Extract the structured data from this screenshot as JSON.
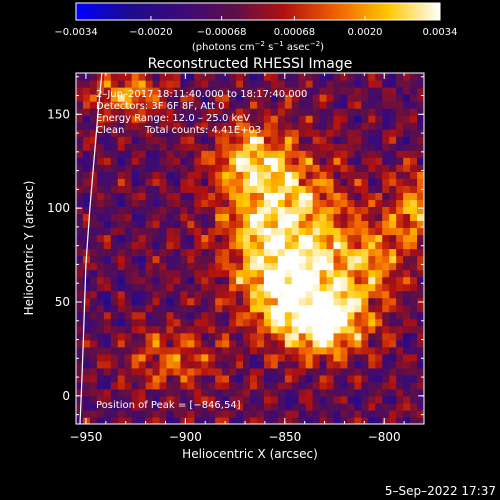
{
  "chart_data": {
    "type": "heatmap",
    "title": "Reconstructed RHESSI Image",
    "xlabel": "Heliocentric X (arcsec)",
    "ylabel": "Heliocentric Y (arcsec)",
    "xlim": [
      -955,
      -780
    ],
    "ylim": [
      -15,
      172
    ],
    "xticks": [
      -950,
      -900,
      -850,
      -800
    ],
    "xtick_labels": [
      "−950",
      "−900",
      "−850",
      "−800"
    ],
    "yticks": [
      0,
      50,
      100,
      150
    ],
    "ytick_labels": [
      "0",
      "50",
      "100",
      "150"
    ],
    "colorbar": {
      "min": -0.0034,
      "max": 0.0034,
      "ticks": [
        -0.0034,
        -0.002,
        -0.00068,
        0.00068,
        0.002,
        0.0034
      ],
      "tick_labels": [
        "−0.0034",
        "−0.0020",
        "−0.00068",
        "0.00068",
        "0.0020",
        "0.0034"
      ],
      "units_prefix": "(photons cm",
      "units_exp1": "−2",
      "units_mid": " s",
      "units_exp2": "−1",
      "units_mid2": " asec",
      "units_exp3": "−2",
      "units_suffix": ")",
      "colormap": [
        "#0000ff",
        "#1c0a90",
        "#3a0a7a",
        "#5a0f4a",
        "#b01010",
        "#f06000",
        "#ffc800",
        "#ffffff"
      ]
    },
    "annotations": {
      "time": "2–Jun–2017 18:11:40.000 to 18:17:40.000",
      "detectors": "Detectors: 3F 6F 8F, Att 0",
      "energy": "Energy Range: 12.0 – 25.0 keV",
      "clean": "Clean",
      "counts": "Total counts: 4.41E+03",
      "peak": "Position of Peak = [−846,54]"
    },
    "peak": [
      -846,
      54
    ],
    "limb_curve": [
      [
        -942,
        172
      ],
      [
        -944,
        150
      ],
      [
        -946,
        125
      ],
      [
        -948,
        100
      ],
      [
        -950,
        70
      ],
      [
        -951,
        40
      ],
      [
        -952,
        10
      ],
      [
        -953,
        -15
      ]
    ],
    "sources": [
      {
        "x": -852,
        "y": 95,
        "sx": 22,
        "sy": 28,
        "amp": 0.0034
      },
      {
        "x": -846,
        "y": 54,
        "sx": 16,
        "sy": 18,
        "amp": 0.0034
      },
      {
        "x": -826,
        "y": 38,
        "sx": 14,
        "sy": 12,
        "amp": 0.0032
      },
      {
        "x": -808,
        "y": 72,
        "sx": 14,
        "sy": 16,
        "amp": 0.0022
      },
      {
        "x": -785,
        "y": 100,
        "sx": 8,
        "sy": 14,
        "amp": 0.0024
      },
      {
        "x": -868,
        "y": 128,
        "sx": 12,
        "sy": 12,
        "amp": 0.002
      },
      {
        "x": -930,
        "y": 160,
        "sx": 14,
        "sy": 10,
        "amp": 0.0022
      },
      {
        "x": -905,
        "y": 20,
        "sx": 16,
        "sy": 12,
        "amp": 0.0018
      }
    ],
    "grid": false
  },
  "footer": {
    "date": "5–Sep–2022 17:37"
  }
}
